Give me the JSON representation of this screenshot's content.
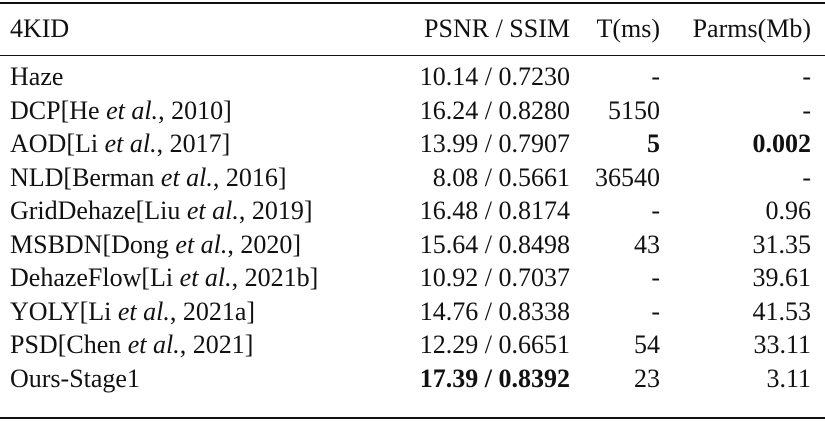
{
  "table": {
    "header": [
      "4KID",
      "PSNR / SSIM",
      "T(ms)",
      "Parms(Mb)"
    ],
    "rows": [
      {
        "method": [
          "Haze"
        ],
        "cells": [
          "10.14 / 0.7230",
          "-",
          "-"
        ],
        "bold": []
      },
      {
        "method": [
          "DCP[He ",
          "et al.",
          ", 2010]"
        ],
        "cells": [
          "16.24 / 0.8280",
          "5150",
          "-"
        ],
        "bold": []
      },
      {
        "method": [
          "AOD[Li ",
          "et al.",
          ", 2017]"
        ],
        "cells": [
          "13.99 / 0.7907",
          "5",
          "0.002"
        ],
        "bold": [
          1,
          2
        ]
      },
      {
        "method": [
          "NLD[Berman ",
          "et al.",
          ", 2016]"
        ],
        "cells": [
          "8.08 / 0.5661",
          "36540",
          "-"
        ],
        "bold": []
      },
      {
        "method": [
          "GridDehaze[Liu ",
          "et al.",
          ", 2019]"
        ],
        "cells": [
          "16.48 / 0.8174",
          "-",
          "0.96"
        ],
        "bold": []
      },
      {
        "method": [
          "MSBDN[Dong ",
          "et al.",
          ", 2020]"
        ],
        "cells": [
          "15.64 / 0.8498",
          "43",
          "31.35"
        ],
        "bold": []
      },
      {
        "method": [
          "DehazeFlow[Li ",
          "et al.",
          ", 2021b]"
        ],
        "cells": [
          "10.92 / 0.7037",
          "-",
          "39.61"
        ],
        "bold": []
      },
      {
        "method": [
          "YOLY[Li ",
          "et al.",
          ", 2021a]"
        ],
        "cells": [
          "14.76 / 0.8338",
          "-",
          "41.53"
        ],
        "bold": []
      },
      {
        "method": [
          "PSD[Chen ",
          "et al.",
          ", 2021]"
        ],
        "cells": [
          "12.29 / 0.6651",
          "54",
          "33.11"
        ],
        "bold": []
      },
      {
        "method": [
          "Ours-Stage1"
        ],
        "cells": [
          "17.39 / 0.8392",
          "23",
          "3.11"
        ],
        "bold": [
          0
        ]
      }
    ]
  }
}
